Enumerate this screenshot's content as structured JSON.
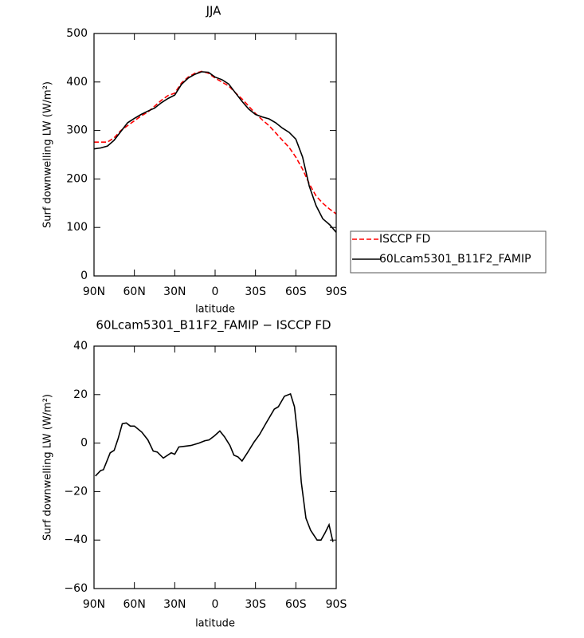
{
  "chart_data": [
    {
      "type": "line",
      "title": "JJA",
      "x_label": "latitude",
      "y_label": "Surf downwelling LW (W/m²)",
      "xlim": [
        90,
        -90
      ],
      "ylim": [
        0,
        500
      ],
      "xticks": [
        {
          "value": 90,
          "label": "90N"
        },
        {
          "value": 60,
          "label": "60N"
        },
        {
          "value": 30,
          "label": "30N"
        },
        0,
        {
          "value": -30,
          "label": "30S"
        },
        {
          "value": -60,
          "label": "60S"
        },
        {
          "value": -90,
          "label": "90S"
        }
      ],
      "yticks": [
        0,
        100,
        200,
        300,
        400,
        500
      ],
      "x": [
        90,
        85,
        80,
        75,
        70,
        65,
        60,
        55,
        50,
        45,
        40,
        35,
        30,
        25,
        20,
        15,
        10,
        5,
        0,
        -5,
        -10,
        -15,
        -20,
        -25,
        -30,
        -35,
        -40,
        -45,
        -50,
        -55,
        -60,
        -65,
        -70,
        -75,
        -80,
        -85,
        -90
      ],
      "legend": "right",
      "series": [
        {
          "name": "ISCCP FD",
          "color": "#ff0000",
          "line_style": "dashed",
          "values": [
            276,
            276,
            276,
            285,
            300,
            310,
            320,
            330,
            338,
            350,
            362,
            372,
            377,
            398,
            410,
            418,
            422,
            418,
            408,
            400,
            392,
            378,
            365,
            350,
            335,
            322,
            310,
            295,
            280,
            265,
            245,
            220,
            190,
            165,
            150,
            138,
            128
          ]
        },
        {
          "name": "60Lcam5301_B11F2_FAMIP",
          "color": "#000000",
          "line_style": "solid",
          "values": [
            262,
            264,
            268,
            280,
            298,
            316,
            325,
            333,
            340,
            346,
            357,
            366,
            373,
            395,
            408,
            416,
            421,
            420,
            410,
            405,
            396,
            378,
            360,
            344,
            333,
            328,
            324,
            316,
            305,
            296,
            282,
            245,
            185,
            145,
            118,
            106,
            90
          ]
        }
      ]
    },
    {
      "type": "line",
      "title": "60Lcam5301_B11F2_FAMIP − ISCCP FD",
      "x_label": "latitude",
      "y_label": "Surf downwelling LW (W/m²)",
      "xlim": [
        90,
        -90
      ],
      "ylim": [
        -60,
        40
      ],
      "xticks": [
        {
          "value": 90,
          "label": "90N"
        },
        {
          "value": 60,
          "label": "60N"
        },
        {
          "value": 30,
          "label": "30N"
        },
        0,
        {
          "value": -30,
          "label": "30S"
        },
        {
          "value": -60,
          "label": "60S"
        },
        {
          "value": -90,
          "label": "90S"
        }
      ],
      "yticks": [
        {
          "value": -60,
          "label": "−60"
        },
        {
          "value": -40,
          "label": "−40"
        },
        {
          "value": -20,
          "label": "−20"
        },
        0,
        20,
        40
      ],
      "x": [
        89,
        85,
        83,
        78,
        75,
        72,
        69,
        66,
        63,
        60,
        54.5,
        50,
        46,
        43,
        38.5,
        32.6,
        30,
        27,
        22.5,
        18,
        12,
        7.5,
        4.5,
        0.5,
        -3.5,
        -7,
        -11,
        -14,
        -17,
        -20,
        -24,
        -29,
        -33,
        -38,
        -44,
        -47,
        -51.5,
        -56,
        -59,
        -61.6,
        -64,
        -67.5,
        -71,
        -75.8,
        -78.7,
        -81.7,
        -84.7,
        -87.6
      ],
      "series": [
        {
          "color": "#000000",
          "line_style": "solid",
          "values": [
            -13.6,
            -11.3,
            -11,
            -4,
            -3,
            2,
            8,
            8.3,
            7,
            7,
            4.5,
            1.3,
            -3.3,
            -3.7,
            -6.2,
            -4,
            -4.6,
            -1.6,
            -1.3,
            -1,
            0,
            1,
            1.3,
            3,
            5,
            2.6,
            -1,
            -5,
            -5.7,
            -7.4,
            -4,
            0.5,
            3.5,
            8.4,
            14,
            15,
            19.3,
            20.3,
            15,
            2,
            -16,
            -31,
            -36,
            -40,
            -40,
            -37,
            -33.7,
            -40.8
          ]
        }
      ]
    }
  ]
}
